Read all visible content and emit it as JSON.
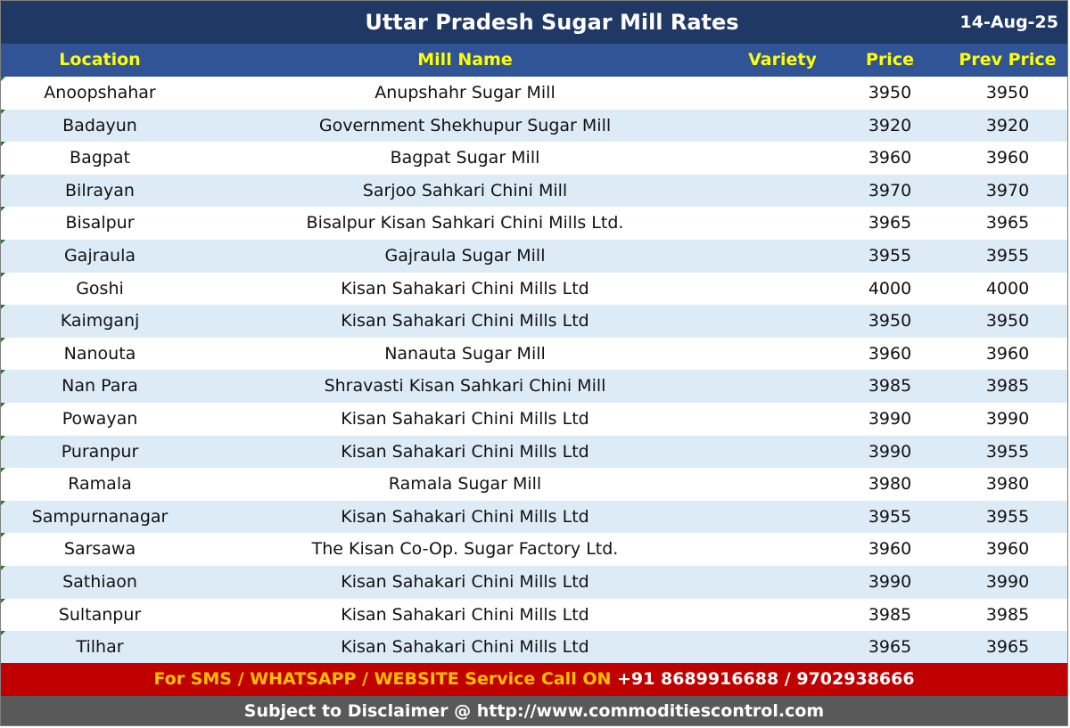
{
  "title": "Uttar Pradesh Sugar Mill Rates",
  "date": "14-Aug-25",
  "columns": {
    "location": "Location",
    "mill_name": "Mill Name",
    "variety": "Variety",
    "price": "Price",
    "prev_price": "Prev Price"
  },
  "rows": [
    {
      "location": "Anoopshahar",
      "mill": "Anupshahr Sugar Mill",
      "variety": "",
      "price": "3950",
      "prev": "3950"
    },
    {
      "location": "Badayun",
      "mill": "Government Shekhupur Sugar Mill",
      "variety": "",
      "price": "3920",
      "prev": "3920"
    },
    {
      "location": "Bagpat",
      "mill": "Bagpat Sugar Mill",
      "variety": "",
      "price": "3960",
      "prev": "3960"
    },
    {
      "location": "Bilrayan",
      "mill": "Sarjoo Sahkari Chini Mill",
      "variety": "",
      "price": "3970",
      "prev": "3970"
    },
    {
      "location": "Bisalpur",
      "mill": "Bisalpur Kisan Sahkari Chini Mills Ltd.",
      "variety": "",
      "price": "3965",
      "prev": "3965"
    },
    {
      "location": "Gajraula",
      "mill": "Gajraula Sugar Mill",
      "variety": "",
      "price": "3955",
      "prev": "3955"
    },
    {
      "location": "Goshi",
      "mill": "Kisan Sahakari Chini Mills Ltd",
      "variety": "",
      "price": "4000",
      "prev": "4000"
    },
    {
      "location": "Kaimganj",
      "mill": "Kisan Sahakari Chini Mills Ltd",
      "variety": "",
      "price": "3950",
      "prev": "3950"
    },
    {
      "location": "Nanouta",
      "mill": "Nanauta Sugar Mill",
      "variety": "",
      "price": "3960",
      "prev": "3960"
    },
    {
      "location": "Nan Para",
      "mill": "Shravasti Kisan Sahkari Chini Mill",
      "variety": "",
      "price": "3985",
      "prev": "3985"
    },
    {
      "location": "Powayan",
      "mill": "Kisan Sahakari Chini Mills Ltd",
      "variety": "",
      "price": "3990",
      "prev": "3990"
    },
    {
      "location": "Puranpur",
      "mill": "Kisan Sahakari Chini Mills Ltd",
      "variety": "",
      "price": "3990",
      "prev": "3955"
    },
    {
      "location": "Ramala",
      "mill": "Ramala Sugar Mill",
      "variety": "",
      "price": "3980",
      "prev": "3980"
    },
    {
      "location": "Sampurnanagar",
      "mill": "Kisan Sahakari Chini Mills Ltd",
      "variety": "",
      "price": "3955",
      "prev": "3955"
    },
    {
      "location": "Sarsawa",
      "mill": "The Kisan Co-Op. Sugar Factory Ltd.",
      "variety": "",
      "price": "3960",
      "prev": "3960"
    },
    {
      "location": "Sathiaon",
      "mill": "Kisan Sahakari Chini Mills Ltd",
      "variety": "",
      "price": "3990",
      "prev": "3990"
    },
    {
      "location": "Sultanpur",
      "mill": "Kisan Sahakari Chini Mills Ltd",
      "variety": "",
      "price": "3985",
      "prev": "3985"
    },
    {
      "location": "Tilhar",
      "mill": "Kisan Sahakari Chini Mills Ltd",
      "variety": "",
      "price": "3965",
      "prev": "3965"
    }
  ],
  "footer": {
    "service_label": "For SMS / WHATSAPP / WEBSITE Service Call  ON ",
    "phones": "+91 8689916688 / 9702938666",
    "disclaimer": "Subject to Disclaimer @  http://www.commoditiescontrol.com"
  },
  "colors": {
    "title_bg": "#1f3864",
    "header_bg": "#305496",
    "header_text": "#ffff00",
    "stripe": "#ddebf7",
    "footer_red": "#c00000",
    "footer_gray": "#595959"
  }
}
